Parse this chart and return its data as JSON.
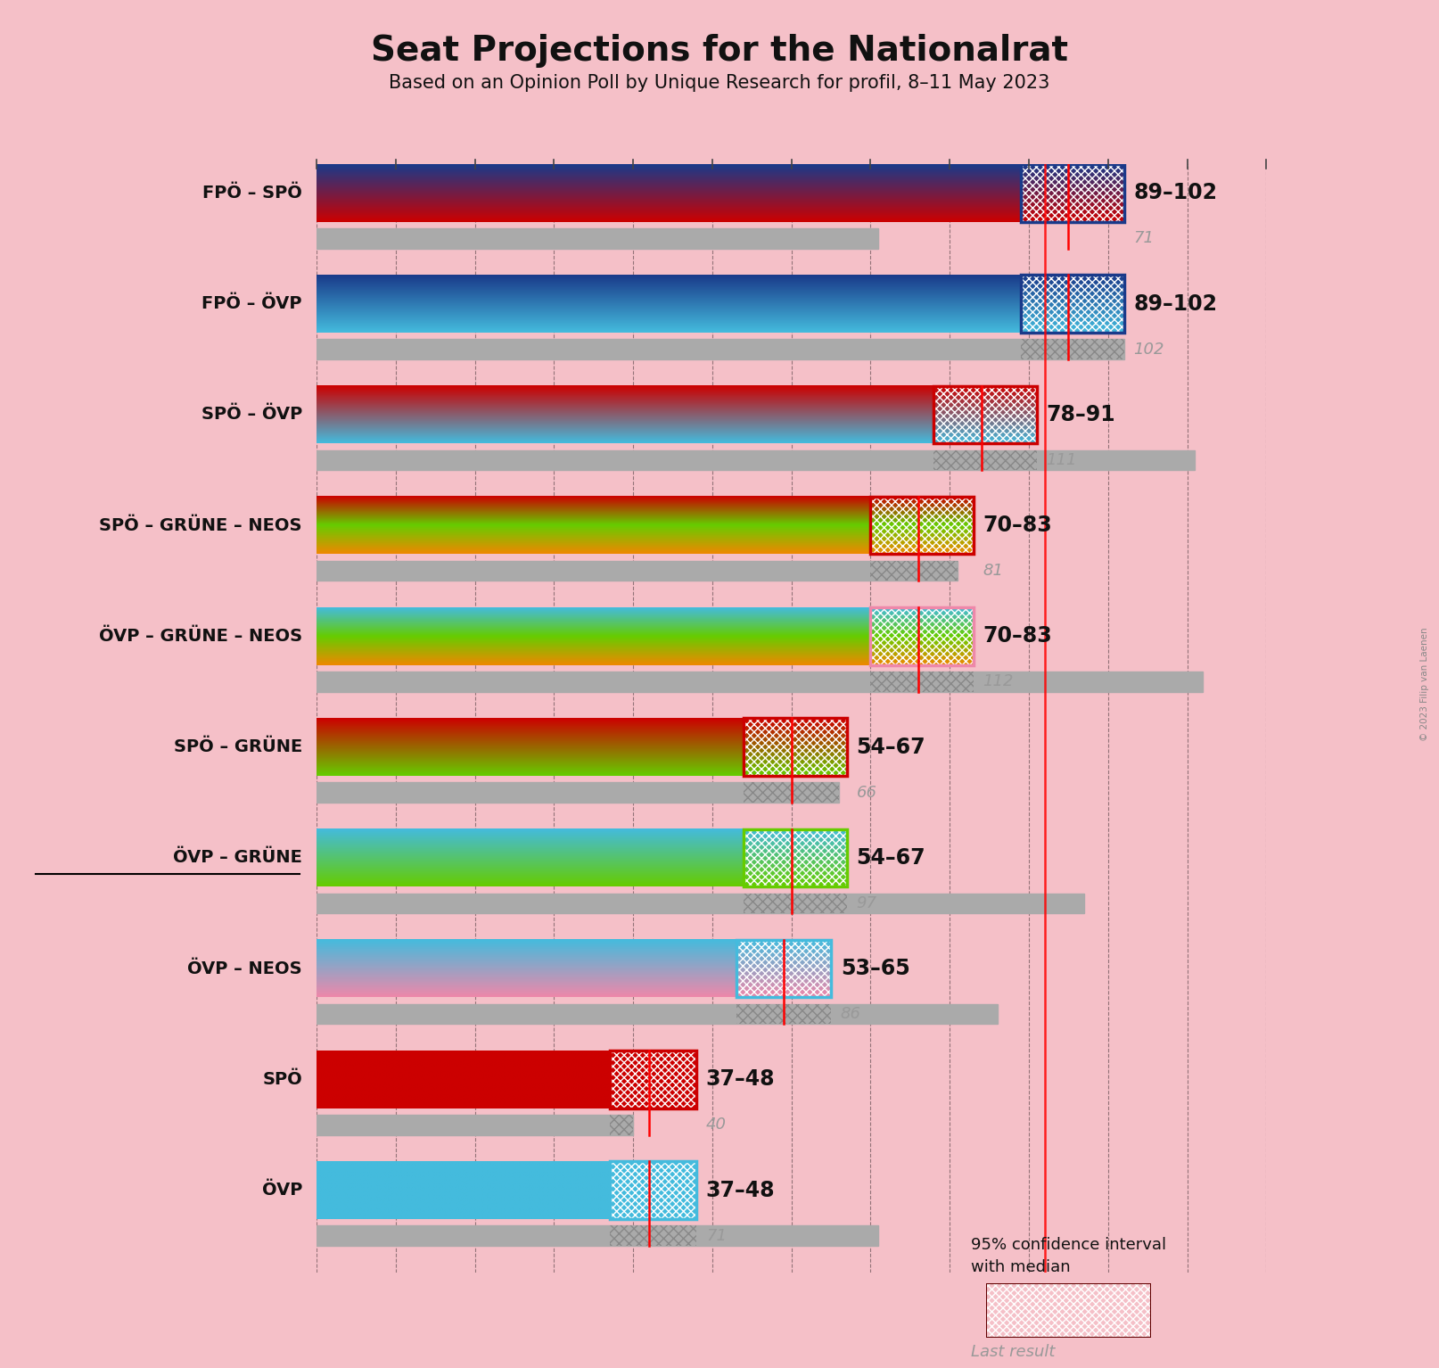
{
  "title": "Seat Projections for the Nationalrat",
  "subtitle": "Based on an Opinion Poll by Unique Research for profil, 8–11 May 2023",
  "copyright": "© 2023 Filip van Laenen",
  "background_color": "#f5c0c8",
  "xlim_max": 120,
  "majority_line": 92,
  "tick_interval": 10,
  "coalitions": [
    {
      "label": "FPÖ – SPÖ",
      "ci_low": 89,
      "ci_high": 102,
      "median": 95,
      "last_result": 71,
      "colors": [
        "#1a3a8a",
        "#cc0000"
      ],
      "ci_border_color": "#1a3a8a",
      "underline": false
    },
    {
      "label": "FPÖ – ÖVP",
      "ci_low": 89,
      "ci_high": 102,
      "median": 95,
      "last_result": 102,
      "colors": [
        "#1a3a8a",
        "#44bbdd"
      ],
      "ci_border_color": "#1a3a8a",
      "underline": false
    },
    {
      "label": "SPÖ – ÖVP",
      "ci_low": 78,
      "ci_high": 91,
      "median": 84,
      "last_result": 111,
      "colors": [
        "#cc0000",
        "#44bbdd"
      ],
      "ci_border_color": "#cc0000",
      "underline": false
    },
    {
      "label": "SPÖ – GRÜNE – NEOS",
      "ci_low": 70,
      "ci_high": 83,
      "median": 76,
      "last_result": 81,
      "colors": [
        "#cc0000",
        "#66cc00",
        "#ee8800"
      ],
      "ci_border_color": "#cc0000",
      "underline": false
    },
    {
      "label": "ÖVP – GRÜNE – NEOS",
      "ci_low": 70,
      "ci_high": 83,
      "median": 76,
      "last_result": 112,
      "colors": [
        "#44bbdd",
        "#66cc00",
        "#ee8800"
      ],
      "ci_border_color": "#ee88aa",
      "underline": false
    },
    {
      "label": "SPÖ – GRÜNE",
      "ci_low": 54,
      "ci_high": 67,
      "median": 60,
      "last_result": 66,
      "colors": [
        "#cc0000",
        "#66cc00"
      ],
      "ci_border_color": "#cc0000",
      "underline": false
    },
    {
      "label": "ÖVP – GRÜNE",
      "ci_low": 54,
      "ci_high": 67,
      "median": 60,
      "last_result": 97,
      "colors": [
        "#44bbdd",
        "#66cc00"
      ],
      "ci_border_color": "#66cc00",
      "underline": true
    },
    {
      "label": "ÖVP – NEOS",
      "ci_low": 53,
      "ci_high": 65,
      "median": 59,
      "last_result": 86,
      "colors": [
        "#44bbdd",
        "#ee88aa"
      ],
      "ci_border_color": "#44bbdd",
      "underline": false
    },
    {
      "label": "SPÖ",
      "ci_low": 37,
      "ci_high": 48,
      "median": 42,
      "last_result": 40,
      "colors": [
        "#cc0000"
      ],
      "ci_border_color": "#cc0000",
      "underline": false
    },
    {
      "label": "ÖVP",
      "ci_low": 37,
      "ci_high": 48,
      "median": 42,
      "last_result": 71,
      "colors": [
        "#44bbdd"
      ],
      "ci_border_color": "#44bbdd",
      "underline": false
    }
  ]
}
